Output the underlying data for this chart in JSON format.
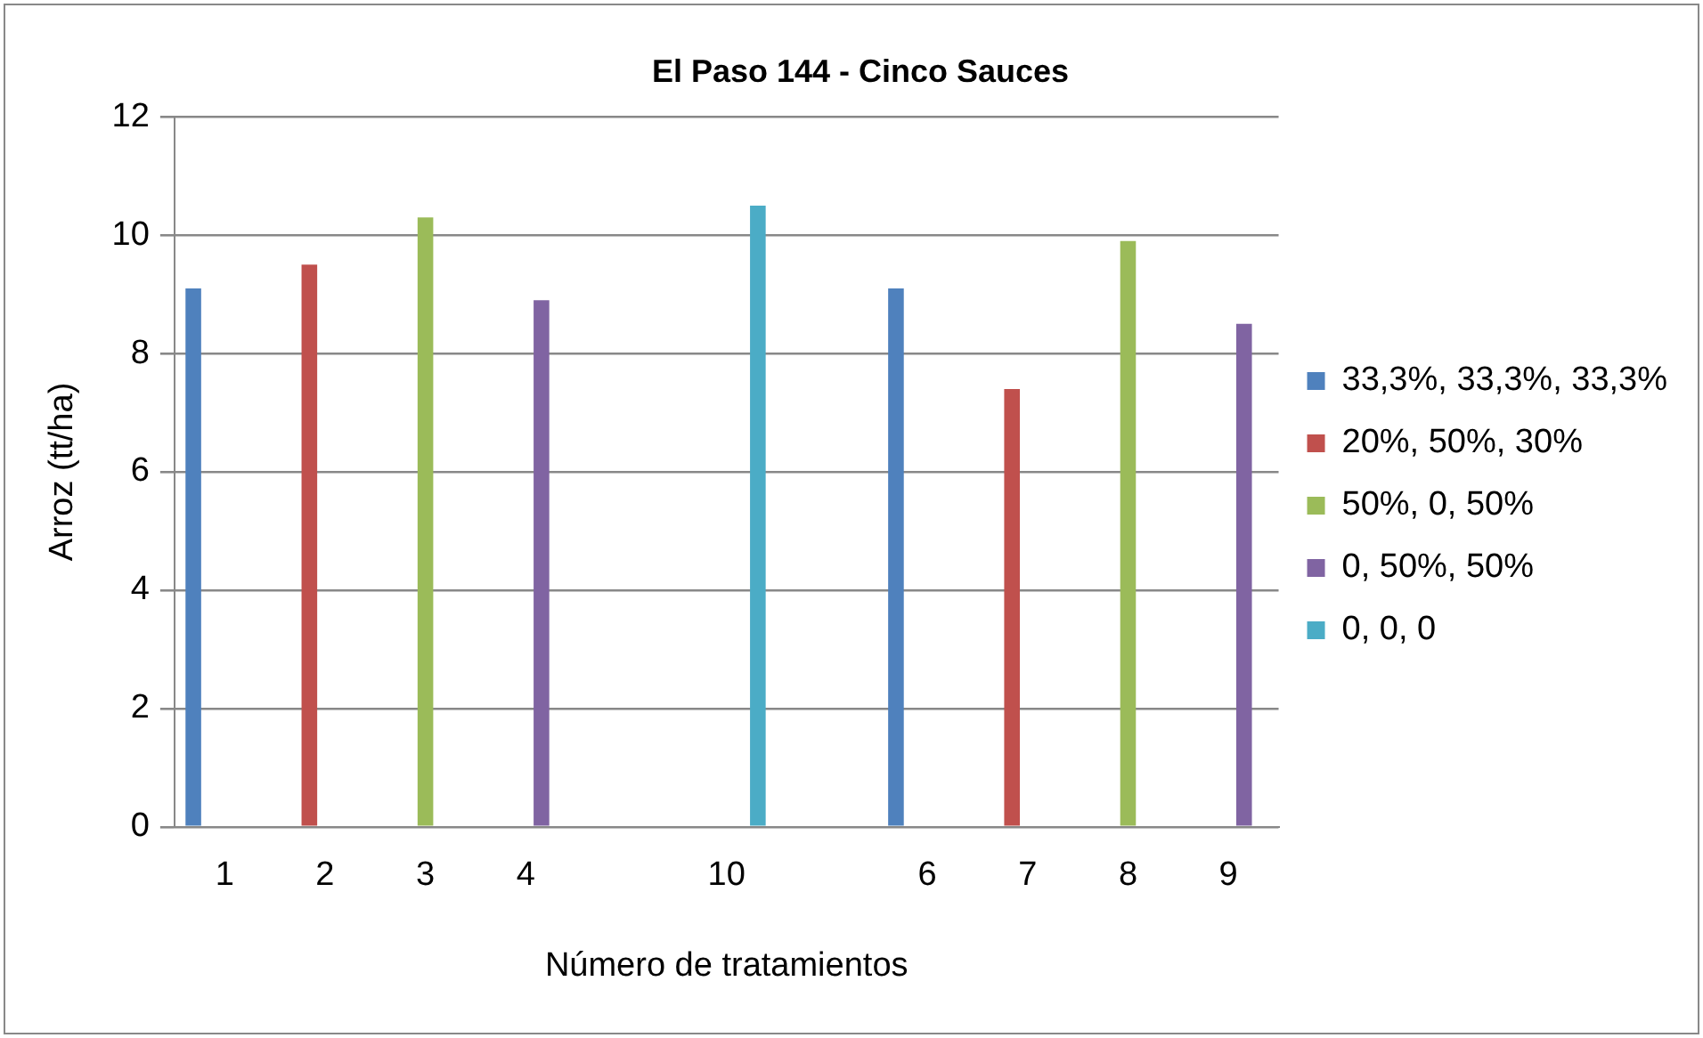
{
  "chart_data": {
    "type": "bar",
    "title": "El Paso 144 - Cinco Sauces",
    "xlabel": "Número de tratamientos",
    "ylabel": "Arroz (tt/ha)",
    "categories": [
      "1",
      "2",
      "3",
      "4",
      null,
      "10",
      null,
      "6",
      "7",
      "8",
      "9"
    ],
    "series": [
      {
        "name": "33,3%, 33,3%, 33,3%",
        "color": "#4f81bd",
        "values": [
          9.1,
          null,
          null,
          null,
          null,
          null,
          null,
          9.1,
          null,
          null,
          null
        ]
      },
      {
        "name": "20%, 50%, 30%",
        "color": "#c0504d",
        "values": [
          null,
          9.5,
          null,
          null,
          null,
          null,
          null,
          null,
          7.4,
          null,
          null
        ]
      },
      {
        "name": "50%, 0, 50%",
        "color": "#9bbb59",
        "values": [
          null,
          null,
          10.3,
          null,
          null,
          null,
          null,
          null,
          null,
          9.9,
          null
        ]
      },
      {
        "name": "0, 50%, 50%",
        "color": "#8064a2",
        "values": [
          null,
          null,
          null,
          8.9,
          null,
          null,
          null,
          null,
          null,
          null,
          8.5
        ]
      },
      {
        "name": "0, 0, 0",
        "color": "#4bacc6",
        "values": [
          null,
          null,
          null,
          null,
          null,
          10.5,
          null,
          null,
          null,
          null,
          null
        ]
      }
    ],
    "ylim": [
      0,
      12
    ],
    "yticks": [
      0,
      2,
      4,
      6,
      8,
      10,
      12
    ],
    "grid": "y",
    "legend": "right"
  }
}
